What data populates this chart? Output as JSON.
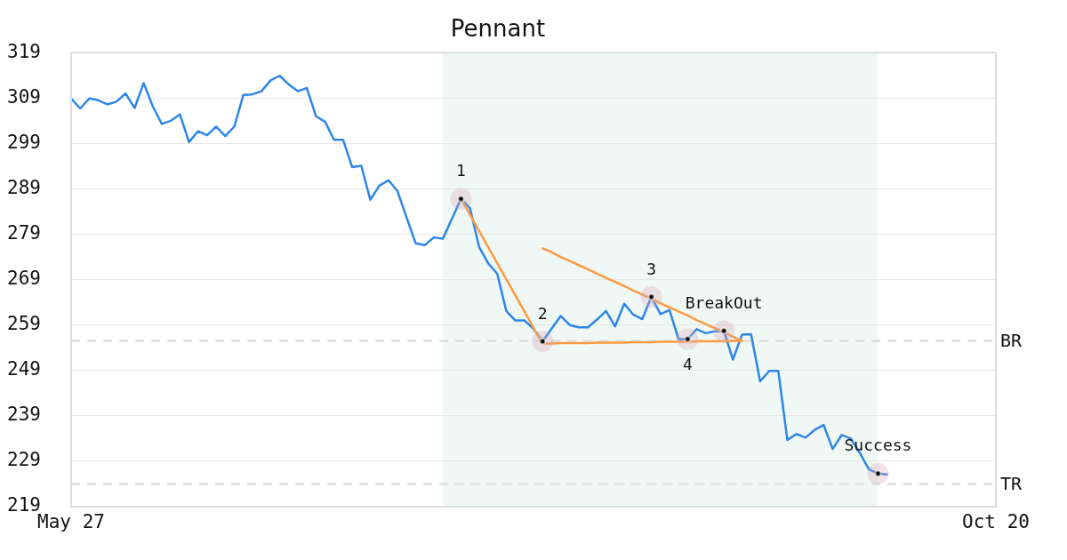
{
  "chart_data": {
    "type": "line",
    "title": "Pennant",
    "categories": [
      "May 27",
      null,
      null,
      null,
      null,
      null,
      null,
      null,
      null,
      null,
      null,
      null,
      null,
      null,
      null,
      null,
      null,
      null,
      null,
      null,
      null,
      null,
      null,
      null,
      null,
      null,
      null,
      null,
      null,
      null,
      null,
      null,
      null,
      null,
      null,
      null,
      null,
      null,
      null,
      null,
      null,
      null,
      null,
      null,
      null,
      null,
      null,
      null,
      null,
      null,
      null,
      null,
      null,
      null,
      null,
      null,
      null,
      null,
      null,
      null,
      null,
      null,
      null,
      null,
      null,
      null,
      null,
      null,
      null,
      null,
      null,
      null,
      null,
      null,
      null,
      null,
      null,
      null,
      null,
      null,
      null,
      null,
      null,
      null,
      null,
      null,
      null,
      null,
      null,
      null,
      null,
      null,
      null,
      null,
      null,
      null,
      null,
      null,
      null,
      null,
      null,
      null,
      "Oct 20"
    ],
    "ylim": [
      219,
      319
    ],
    "yticks": [
      219,
      229,
      239,
      249,
      259,
      269,
      279,
      289,
      299,
      309,
      319
    ],
    "grid": "y",
    "series": [
      {
        "color": "#2e86e8",
        "values": [
          308.9,
          306.7,
          308.9,
          308.5,
          307.6,
          308.2,
          310.0,
          306.8,
          312.3,
          307.2,
          303.3,
          304.0,
          305.4,
          299.3,
          301.7,
          300.8,
          302.7,
          300.6,
          302.7,
          309.7,
          309.8,
          310.5,
          312.9,
          313.9,
          312.0,
          310.5,
          311.2,
          305.0,
          303.8,
          299.8,
          299.8,
          293.8,
          294.1,
          286.6,
          289.7,
          290.9,
          288.5,
          282.7,
          277.0,
          276.6,
          278.3,
          278.0,
          282.4,
          286.8,
          284.7,
          276.2,
          272.6,
          270.3,
          262.1,
          260.0,
          260.0,
          258.2,
          255.4,
          258.2,
          261.0,
          259.0,
          258.5,
          258.5,
          260.2,
          262.1,
          258.7,
          263.7,
          261.3,
          260.3,
          265.2,
          261.4,
          262.3,
          255.9,
          255.9,
          258.1,
          257.2,
          257.6,
          257.7,
          251.4,
          256.9,
          257.0,
          246.6,
          248.9,
          248.9,
          233.7,
          235.0,
          234.2,
          235.9,
          237.0,
          231.7,
          234.8,
          234.0,
          230.8,
          227.2,
          226.3,
          226.1,
          null,
          null,
          null,
          null,
          null,
          null,
          null,
          null,
          null,
          null,
          null,
          null
        ]
      },
      {
        "color": "#fd9a42",
        "values": [
          null,
          null,
          null,
          null,
          null,
          null,
          null,
          null,
          null,
          null,
          null,
          null,
          null,
          null,
          null,
          null,
          null,
          null,
          null,
          null,
          null,
          null,
          null,
          null,
          null,
          null,
          null,
          null,
          null,
          null,
          null,
          null,
          null,
          null,
          null,
          null,
          null,
          null,
          null,
          null,
          null,
          null,
          null,
          286.8,
          283.3,
          279.7,
          276.2,
          272.6,
          269.1,
          265.5,
          262.0,
          258.4,
          254.9,
          null,
          null,
          null,
          null,
          null,
          null,
          null,
          null,
          null,
          null,
          null,
          null,
          null,
          null,
          null,
          null,
          null,
          null,
          null,
          null,
          null,
          null,
          null,
          null,
          null,
          null,
          null,
          null,
          null,
          null,
          null,
          null,
          null,
          null,
          null,
          null,
          null,
          null,
          null,
          null,
          null,
          null,
          null,
          null,
          null,
          null,
          null,
          null,
          null,
          null
        ]
      },
      {
        "color": "#fd9a42",
        "values": [
          null,
          null,
          null,
          null,
          null,
          null,
          null,
          null,
          null,
          null,
          null,
          null,
          null,
          null,
          null,
          null,
          null,
          null,
          null,
          null,
          null,
          null,
          null,
          null,
          null,
          null,
          null,
          null,
          null,
          null,
          null,
          null,
          null,
          null,
          null,
          null,
          null,
          null,
          null,
          null,
          null,
          null,
          null,
          null,
          null,
          null,
          null,
          null,
          null,
          null,
          null,
          null,
          254.9,
          254.9,
          255.0,
          255.0,
          255.0,
          255.0,
          255.1,
          255.1,
          255.1,
          255.1,
          255.2,
          255.2,
          255.2,
          255.3,
          255.3,
          255.3,
          255.3,
          255.4,
          255.4,
          255.4,
          255.4,
          255.5,
          255.5,
          null,
          null,
          null,
          null,
          null,
          null,
          null,
          null,
          null,
          null,
          null,
          null,
          null,
          null,
          null,
          null,
          null,
          null,
          null,
          null,
          null,
          null,
          null,
          null,
          null,
          null,
          null,
          null
        ]
      },
      {
        "color": "#fd9a42",
        "values": [
          null,
          null,
          null,
          null,
          null,
          null,
          null,
          null,
          null,
          null,
          null,
          null,
          null,
          null,
          null,
          null,
          null,
          null,
          null,
          null,
          null,
          null,
          null,
          null,
          null,
          null,
          null,
          null,
          null,
          null,
          null,
          null,
          null,
          null,
          null,
          null,
          null,
          null,
          null,
          null,
          null,
          null,
          null,
          null,
          null,
          null,
          null,
          null,
          null,
          null,
          null,
          null,
          275.9,
          275.0,
          274.0,
          273.1,
          272.2,
          271.3,
          270.3,
          269.4,
          268.5,
          267.6,
          266.6,
          265.7,
          264.8,
          263.8,
          262.9,
          262.0,
          261.1,
          260.1,
          259.2,
          258.3,
          257.4,
          256.4,
          255.5,
          null,
          null,
          null,
          null,
          null,
          null,
          null,
          null,
          null,
          null,
          null,
          null,
          null,
          null,
          null,
          null,
          null,
          null,
          null,
          null,
          null,
          null,
          null,
          null,
          null,
          null,
          null,
          null
        ]
      },
      {
        "type": "scatter",
        "color": "#000000",
        "marker": "circle",
        "values": [
          null,
          null,
          null,
          null,
          null,
          null,
          null,
          null,
          null,
          null,
          null,
          null,
          null,
          null,
          null,
          null,
          null,
          null,
          null,
          null,
          null,
          null,
          null,
          null,
          null,
          null,
          null,
          null,
          null,
          null,
          null,
          null,
          null,
          null,
          null,
          null,
          null,
          null,
          null,
          null,
          null,
          null,
          null,
          286.8,
          null,
          null,
          null,
          null,
          null,
          null,
          null,
          null,
          255.4,
          null,
          null,
          null,
          null,
          null,
          null,
          null,
          null,
          null,
          null,
          null,
          265.2,
          null,
          null,
          null,
          255.9,
          null,
          null,
          null,
          257.7,
          null,
          null,
          null,
          null,
          null,
          null,
          null,
          null,
          null,
          null,
          null,
          null,
          null,
          null,
          null,
          null,
          226.3,
          null,
          null,
          null,
          null,
          null,
          null,
          null,
          null,
          null,
          null,
          null,
          null,
          null
        ]
      }
    ],
    "ref_lines": [
      {
        "axis": "y",
        "value": 255.5,
        "label": "BR",
        "color": "#dddddd",
        "line_style": "dashed"
      },
      {
        "axis": "y",
        "value": 224,
        "label": "TR",
        "color": "#dddddd",
        "line_style": "dashed"
      }
    ],
    "annotations": [
      {
        "text": "1",
        "y": 286.8
      },
      {
        "text": "2",
        "y": 255.4
      },
      {
        "text": "3",
        "y": 265.2
      },
      {
        "text": "BreakOut",
        "y": 257.7
      },
      {
        "text": "4",
        "y": 255.9
      },
      {
        "text": "Success",
        "y": 226.3
      }
    ]
  }
}
